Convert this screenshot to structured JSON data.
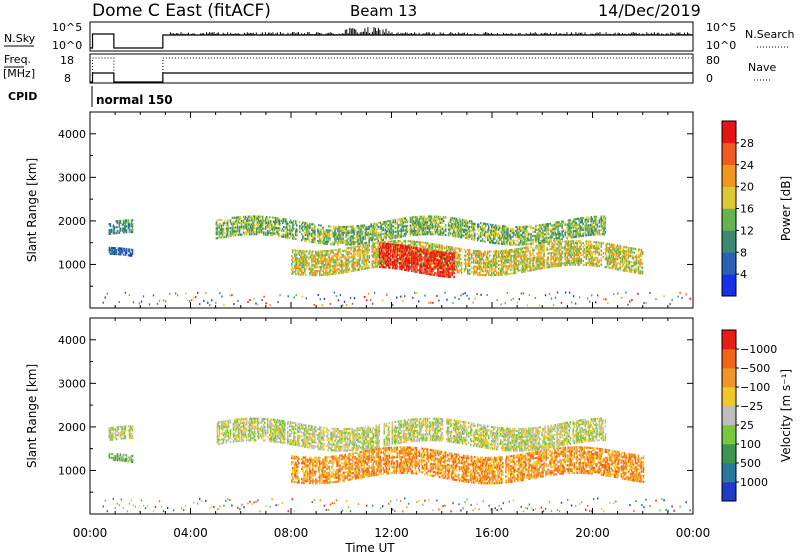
{
  "header": {
    "title": "Dome C East (fitACF)",
    "beam": "Beam 13",
    "date": "14/Dec/2019"
  },
  "strip": {
    "nsky_label": "N.Sky",
    "nsky_ticks": [
      "10^5",
      "10^0"
    ],
    "nsearch_label": "N.Search",
    "nsearch_ticks": [
      "10^5",
      "10^0"
    ],
    "freq_label": "Freq.",
    "freq_unit": "[MHz]",
    "freq_ticks": [
      "18",
      "8"
    ],
    "nave_label": "Nave",
    "nave_ticks": [
      "80",
      "0"
    ],
    "cpid_label": "CPID",
    "cpid_value": "normal 150"
  },
  "chart_data": [
    {
      "type": "heatmap",
      "panel": "power",
      "ylabel": "Slant Range [km]",
      "yticks": [
        1000,
        2000,
        3000,
        4000
      ],
      "ylim": [
        0,
        4500
      ],
      "colorbar": {
        "label": "Power [dB]",
        "ticks": [
          "4",
          "8",
          "12",
          "16",
          "20",
          "24",
          "28"
        ],
        "colors": [
          "#1432e6",
          "#2a60b8",
          "#3c8a70",
          "#64b450",
          "#dcc832",
          "#f0961e",
          "#f05a1e",
          "#e61414"
        ]
      },
      "echo_regions": [
        {
          "t0": 0.7,
          "t1": 1.7,
          "r0": 1650,
          "r1": 1950,
          "level": 2
        },
        {
          "t0": 0.7,
          "t1": 1.7,
          "r0": 1150,
          "r1": 1300,
          "level": 1
        },
        {
          "t0": 5.0,
          "t1": 20.5,
          "r0": 1600,
          "r1": 2050,
          "level": 3
        },
        {
          "t0": 8.0,
          "t1": 22.0,
          "r0": 900,
          "r1": 1450,
          "level": 4
        },
        {
          "t0": 11.5,
          "t1": 14.5,
          "r0": 850,
          "r1": 1400,
          "level": 7
        }
      ]
    },
    {
      "type": "heatmap",
      "panel": "velocity",
      "xlabel": "Time UT",
      "xticks": [
        "00:00",
        "04:00",
        "08:00",
        "12:00",
        "16:00",
        "20:00",
        "00:00"
      ],
      "xlim": [
        0,
        24
      ],
      "ylabel": "Slant Range [km]",
      "yticks": [
        1000,
        2000,
        3000,
        4000
      ],
      "ylim": [
        0,
        4500
      ],
      "colorbar": {
        "label": "Velocity [m s⁻¹]",
        "ticks": [
          "1000",
          "500",
          "100",
          "25",
          "−25",
          "−100",
          "−500",
          "−1000"
        ],
        "colors": [
          "#1e3cc8",
          "#2878a0",
          "#3c9650",
          "#78c83c",
          "#bebebe",
          "#f0c828",
          "#f09628",
          "#f06414",
          "#e61e14"
        ]
      },
      "echo_regions": [
        {
          "t0": 0.7,
          "t1": 1.7,
          "r0": 1650,
          "r1": 1950,
          "level": 4
        },
        {
          "t0": 0.7,
          "t1": 1.7,
          "r0": 1150,
          "r1": 1300,
          "level": 3
        },
        {
          "t0": 5.0,
          "t1": 20.5,
          "r0": 1600,
          "r1": 2100,
          "level": 4
        },
        {
          "t0": 8.0,
          "t1": 22.0,
          "r0": 850,
          "r1": 1450,
          "level": 6
        }
      ]
    }
  ]
}
